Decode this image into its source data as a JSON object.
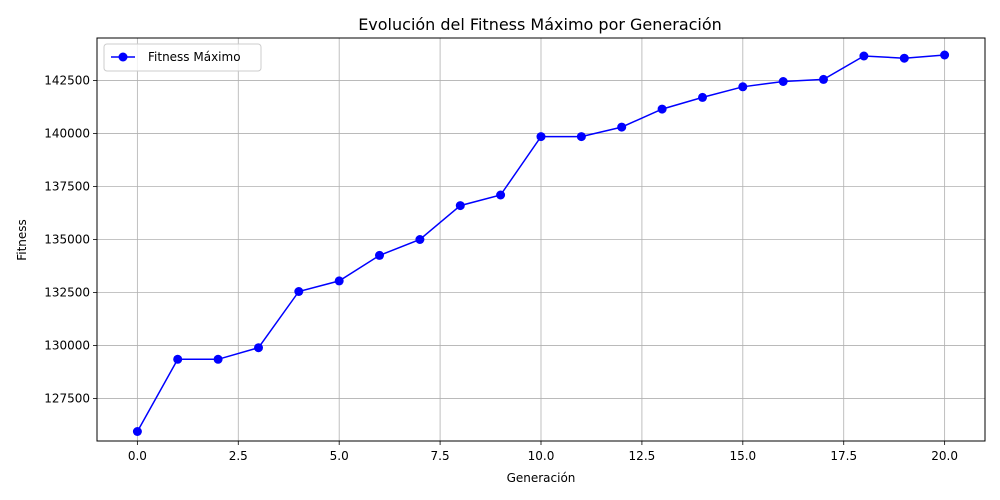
{
  "chart_data": {
    "type": "line",
    "title": "Evolución del Fitness Máximo por Generación",
    "xlabel": "Generación",
    "ylabel": "Fitness",
    "xlim": [
      -1,
      21
    ],
    "ylim": [
      125500,
      144500
    ],
    "x_ticks": [
      0,
      2.5,
      5,
      7.5,
      10,
      12.5,
      15,
      17.5,
      20
    ],
    "x_tick_labels": [
      "0.0",
      "2.5",
      "5.0",
      "7.5",
      "10.0",
      "12.5",
      "15.0",
      "17.5",
      "20.0"
    ],
    "y_ticks": [
      127500,
      130000,
      132500,
      135000,
      137500,
      140000,
      142500
    ],
    "y_tick_labels": [
      "127500",
      "130000",
      "132500",
      "135000",
      "137500",
      "140000",
      "142500"
    ],
    "grid": true,
    "legend_position": "top-left",
    "series": [
      {
        "name": "Fitness Máximo",
        "color": "#0000ff",
        "marker": "circle",
        "x": [
          0,
          1,
          2,
          3,
          4,
          5,
          6,
          7,
          8,
          9,
          10,
          11,
          12,
          13,
          14,
          15,
          16,
          17,
          18,
          19,
          20
        ],
        "y": [
          125950,
          129350,
          129350,
          129900,
          132550,
          133050,
          134250,
          135000,
          136600,
          137100,
          139850,
          139850,
          140300,
          141150,
          141700,
          142200,
          142450,
          142550,
          143650,
          143550,
          143700
        ]
      }
    ]
  }
}
